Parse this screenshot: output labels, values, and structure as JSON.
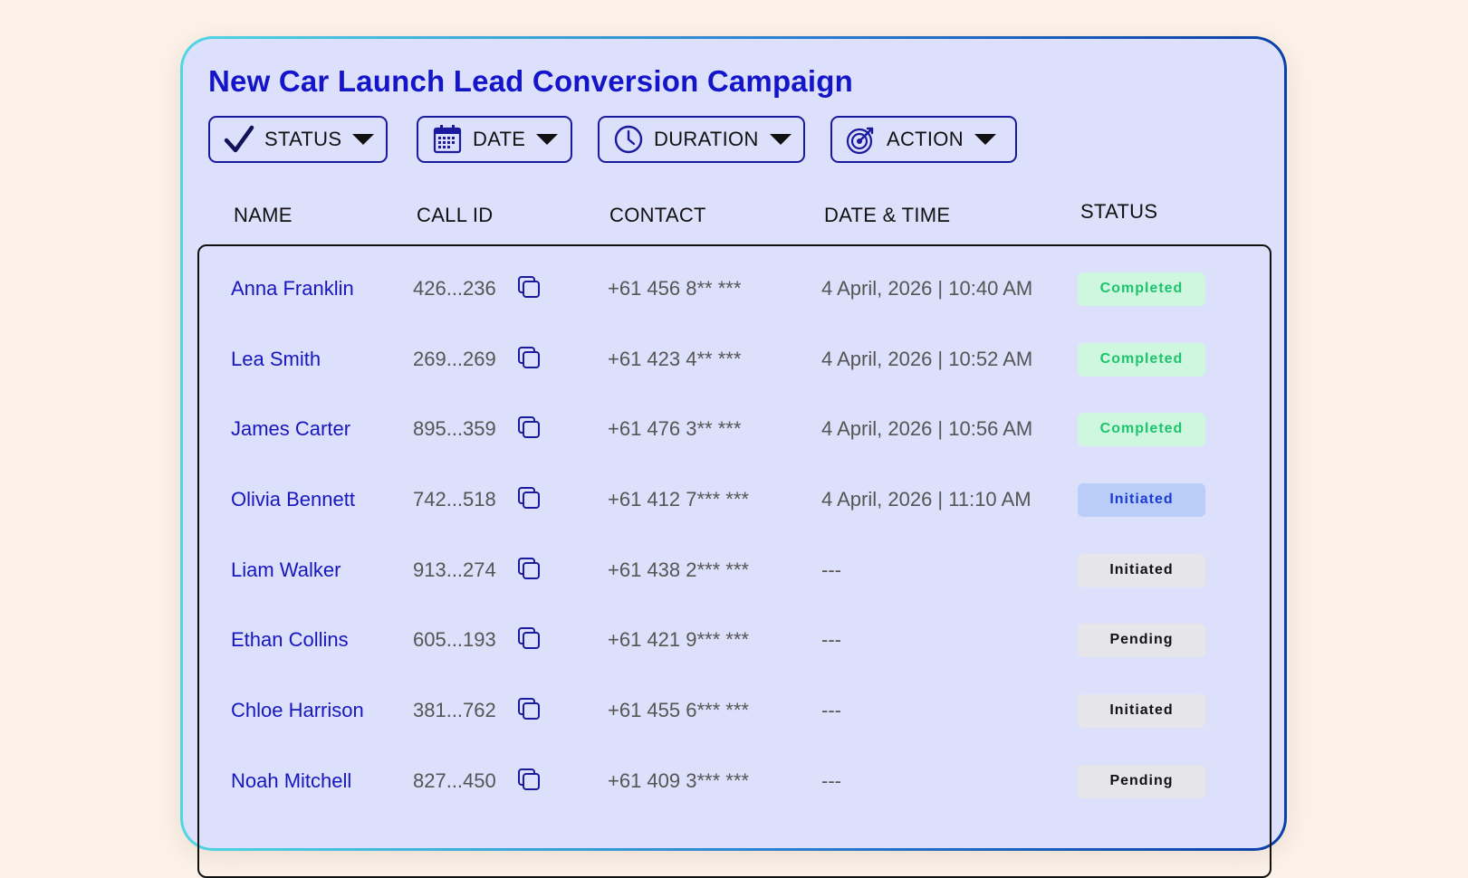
{
  "title": "New Car Launch Lead Conversion Campaign",
  "filters": [
    {
      "label": "STATUS",
      "icon": "checkmark-icon"
    },
    {
      "label": "DATE",
      "icon": "calendar-icon"
    },
    {
      "label": "DURATION",
      "icon": "clock-icon"
    },
    {
      "label": "ACTION",
      "icon": "target-icon"
    }
  ],
  "table": {
    "headers": {
      "name": "NAME",
      "call_id": "CALL ID",
      "contact": "CONTACT",
      "datetime": "DATE & TIME",
      "status": "STATUS"
    },
    "rows": [
      {
        "name": "Anna Franklin",
        "call_id": "426...236",
        "contact": "+61 456 8** ***",
        "datetime": "4 April, 2026 | 10:40 AM",
        "status": "Completed",
        "status_kind": "completed"
      },
      {
        "name": "Lea Smith",
        "call_id": "269...269",
        "contact": "+61 423 4** ***",
        "datetime": "4 April, 2026 | 10:52 AM",
        "status": "Completed",
        "status_kind": "completed"
      },
      {
        "name": "James Carter",
        "call_id": "895...359",
        "contact": "+61 476 3** ***",
        "datetime": "4 April, 2026 | 10:56 AM",
        "status": "Completed",
        "status_kind": "completed"
      },
      {
        "name": "Olivia Bennett",
        "call_id": "742...518",
        "contact": "+61 412 7*** ***",
        "datetime": "4 April, 2026 | 11:10 AM",
        "status": "Initiated",
        "status_kind": "initiated-active"
      },
      {
        "name": "Liam Walker",
        "call_id": "913...274",
        "contact": "+61 438 2*** ***",
        "datetime": "---",
        "status": "Initiated",
        "status_kind": "neutral"
      },
      {
        "name": "Ethan Collins",
        "call_id": "605...193",
        "contact": "+61 421 9*** ***",
        "datetime": "---",
        "status": "Pending",
        "status_kind": "neutral"
      },
      {
        "name": "Chloe Harrison",
        "call_id": "381...762",
        "contact": "+61 455 6*** ***",
        "datetime": "---",
        "status": "Initiated",
        "status_kind": "neutral"
      },
      {
        "name": "Noah Mitchell",
        "call_id": "827...450",
        "contact": "+61 409 3*** ***",
        "datetime": "---",
        "status": "Pending",
        "status_kind": "neutral"
      }
    ]
  },
  "colors": {
    "page_bg": "#fcf2e9",
    "card_bg": "#dde0fb",
    "accent_blue": "#1414c8",
    "completed_bg": "#cff7e0",
    "completed_text": "#1ec46b",
    "initiated_active_bg": "#b9cdf8",
    "initiated_active_text": "#1a3ad0",
    "neutral_bg": "#e6e6ea",
    "neutral_text": "#111111"
  }
}
